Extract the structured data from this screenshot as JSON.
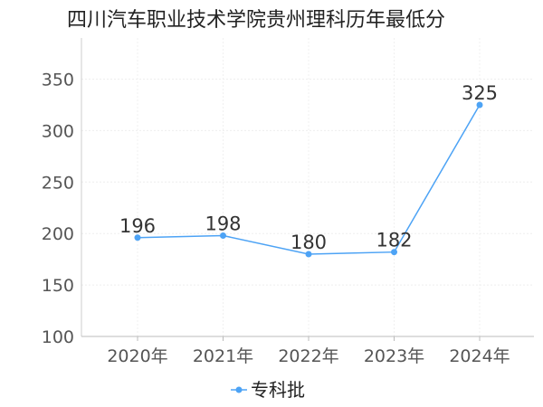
{
  "chart_data": {
    "type": "line",
    "title": "四川汽车职业技术学院贵州理科历年最低分",
    "categories": [
      "2020年",
      "2021年",
      "2022年",
      "2023年",
      "2024年"
    ],
    "series": [
      {
        "name": "专科批",
        "values": [
          196,
          198,
          180,
          182,
          325
        ],
        "color": "#4da3f5"
      }
    ],
    "ylim": [
      100,
      390
    ],
    "yticks": [
      100,
      150,
      200,
      250,
      300,
      350
    ],
    "grid": true,
    "legend": "bottom-center",
    "xlabel": "",
    "ylabel": ""
  }
}
